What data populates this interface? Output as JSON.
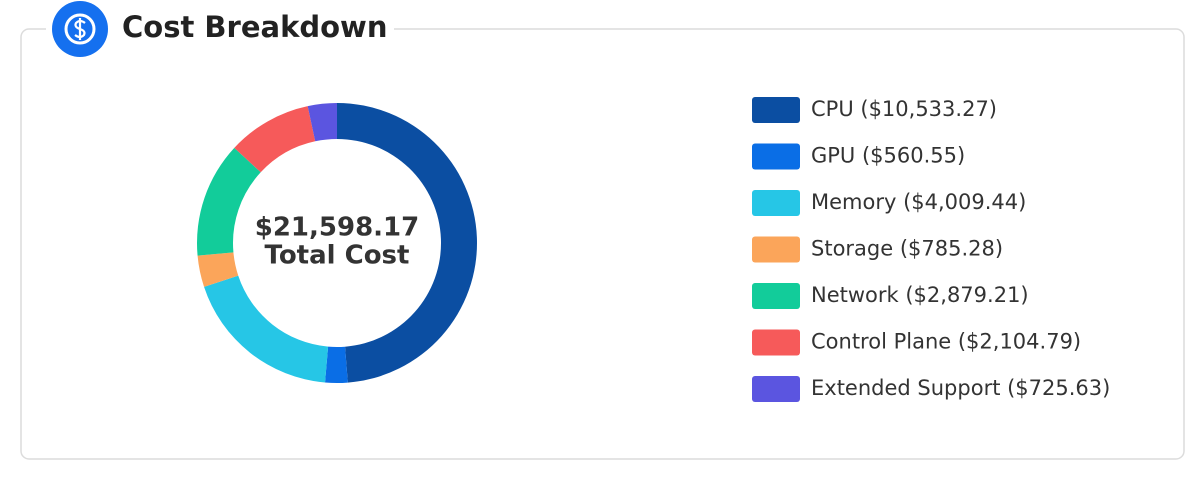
{
  "chart_data": {
    "type": "donut",
    "title": "Cost Breakdown",
    "total": {
      "value": 21598.17,
      "label": "$21,598.17"
    },
    "total_caption": "Total Cost",
    "categories": [
      "CPU ($10,533.27)",
      "GPU ($560.55)",
      "Memory ($4,009.44)",
      "Storage ($785.28)",
      "Network ($2,879.21)",
      "Control Plane ($2,104.79)",
      "Extended Support ($725.63)"
    ],
    "values": [
      10533.27,
      560.55,
      4009.44,
      785.28,
      2879.21,
      2104.79,
      725.63
    ],
    "colors": [
      "#0b4ea2",
      "#0a6ee6",
      "#26c6e6",
      "#fba55a",
      "#12cc9a",
      "#f65a5a",
      "#5b55e0"
    ],
    "legend": "right"
  }
}
